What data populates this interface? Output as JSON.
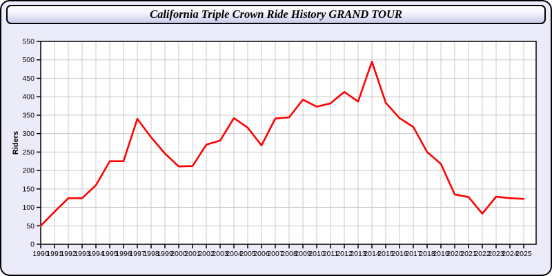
{
  "window": {
    "title": "California Triple Crown Ride History GRAND TOUR"
  },
  "chart_data": {
    "type": "line",
    "title": "California Triple Crown Ride History GRAND TOUR",
    "xlabel": "",
    "ylabel": "Riders",
    "ylim": [
      0,
      550
    ],
    "ytick_step": 50,
    "grid": true,
    "legend_position": "none",
    "x": [
      1990,
      1991,
      1992,
      1993,
      1994,
      1995,
      1996,
      1997,
      1998,
      1999,
      2000,
      2001,
      2002,
      2003,
      2004,
      2005,
      2006,
      2007,
      2008,
      2009,
      2010,
      2011,
      2012,
      2013,
      2014,
      2015,
      2016,
      2017,
      2018,
      2019,
      2020,
      2021,
      2022,
      2023,
      2024,
      2025
    ],
    "series": [
      {
        "name": "Riders",
        "values": [
          50,
          88,
          125,
          125,
          160,
          225,
          225,
          340,
          290,
          246,
          211,
          212,
          270,
          281,
          342,
          316,
          268,
          341,
          344,
          392,
          373,
          382,
          413,
          387,
          495,
          384,
          342,
          318,
          250,
          218,
          135,
          128,
          83,
          129,
          125,
          123
        ]
      }
    ],
    "colors": {
      "line": "#ff0000",
      "grid": "#c8c8c8",
      "axis": "#000000",
      "plot_bg": "#ffffff",
      "outer_bg": "#ebebfa",
      "tick_text": "#000000"
    }
  }
}
